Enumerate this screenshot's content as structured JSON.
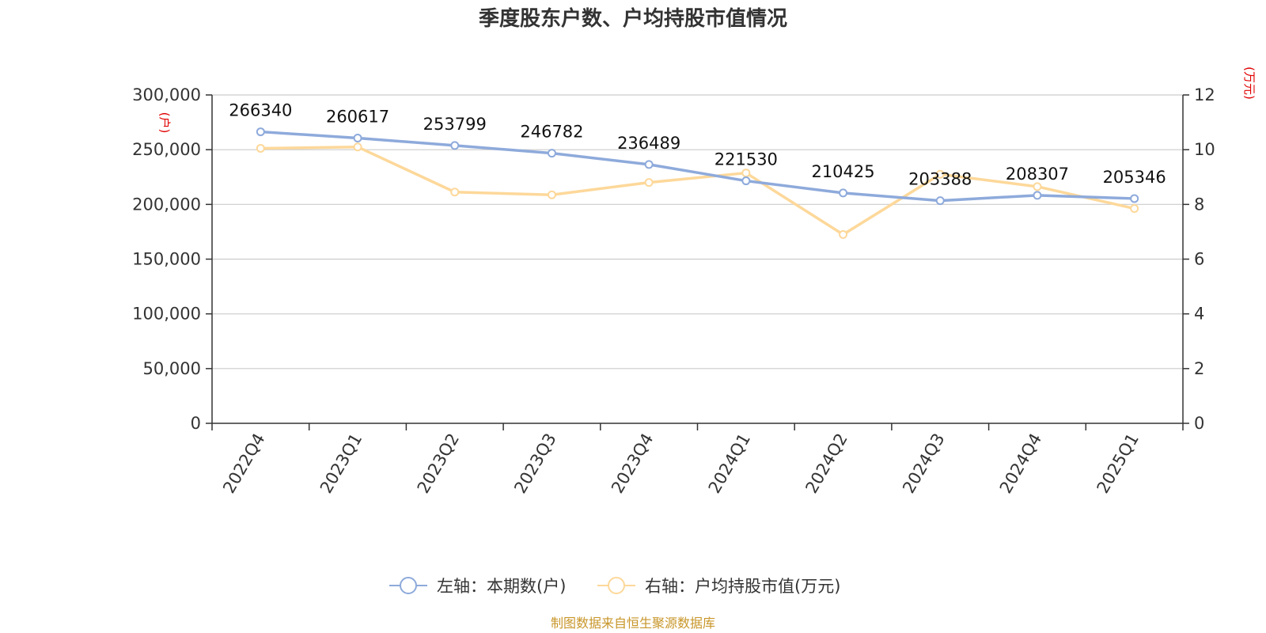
{
  "chart_data": {
    "type": "line",
    "title": "季度股东户数、户均持股市值情况",
    "categories": [
      "2022Q4",
      "2023Q1",
      "2023Q2",
      "2023Q3",
      "2023Q4",
      "2024Q1",
      "2024Q2",
      "2024Q3",
      "2024Q4",
      "2025Q1"
    ],
    "left_axis": {
      "unit": "(户)",
      "ylim": [
        0,
        300000
      ],
      "ticks": [
        0,
        50000,
        100000,
        150000,
        200000,
        250000,
        300000
      ],
      "tick_labels": [
        "0",
        "50,000",
        "100,000",
        "150,000",
        "200,000",
        "250,000",
        "300,000"
      ]
    },
    "right_axis": {
      "unit": "(万元)",
      "ylim": [
        0,
        12
      ],
      "ticks": [
        0,
        2,
        4,
        6,
        8,
        10,
        12
      ],
      "tick_labels": [
        "0",
        "2",
        "4",
        "6",
        "8",
        "10",
        "12"
      ]
    },
    "series": [
      {
        "name": "左轴：本期数(户)",
        "axis": "left",
        "color": "#8eaadb",
        "values": [
          266340,
          260617,
          253799,
          246782,
          236489,
          221530,
          210425,
          203388,
          208307,
          205346
        ],
        "labels": [
          "266340",
          "260617",
          "253799",
          "246782",
          "236489",
          "221530",
          "210425",
          "203388",
          "208307",
          "205346"
        ]
      },
      {
        "name": "右轴：户均持股市值(万元)",
        "axis": "right",
        "color": "#fdd89a",
        "values": [
          10.05,
          10.1,
          8.45,
          8.35,
          8.8,
          9.15,
          6.9,
          9.1,
          8.65,
          7.85
        ]
      }
    ],
    "grid": true,
    "legend_position": "bottom-center"
  },
  "source": "制图数据来自恒生聚源数据库"
}
